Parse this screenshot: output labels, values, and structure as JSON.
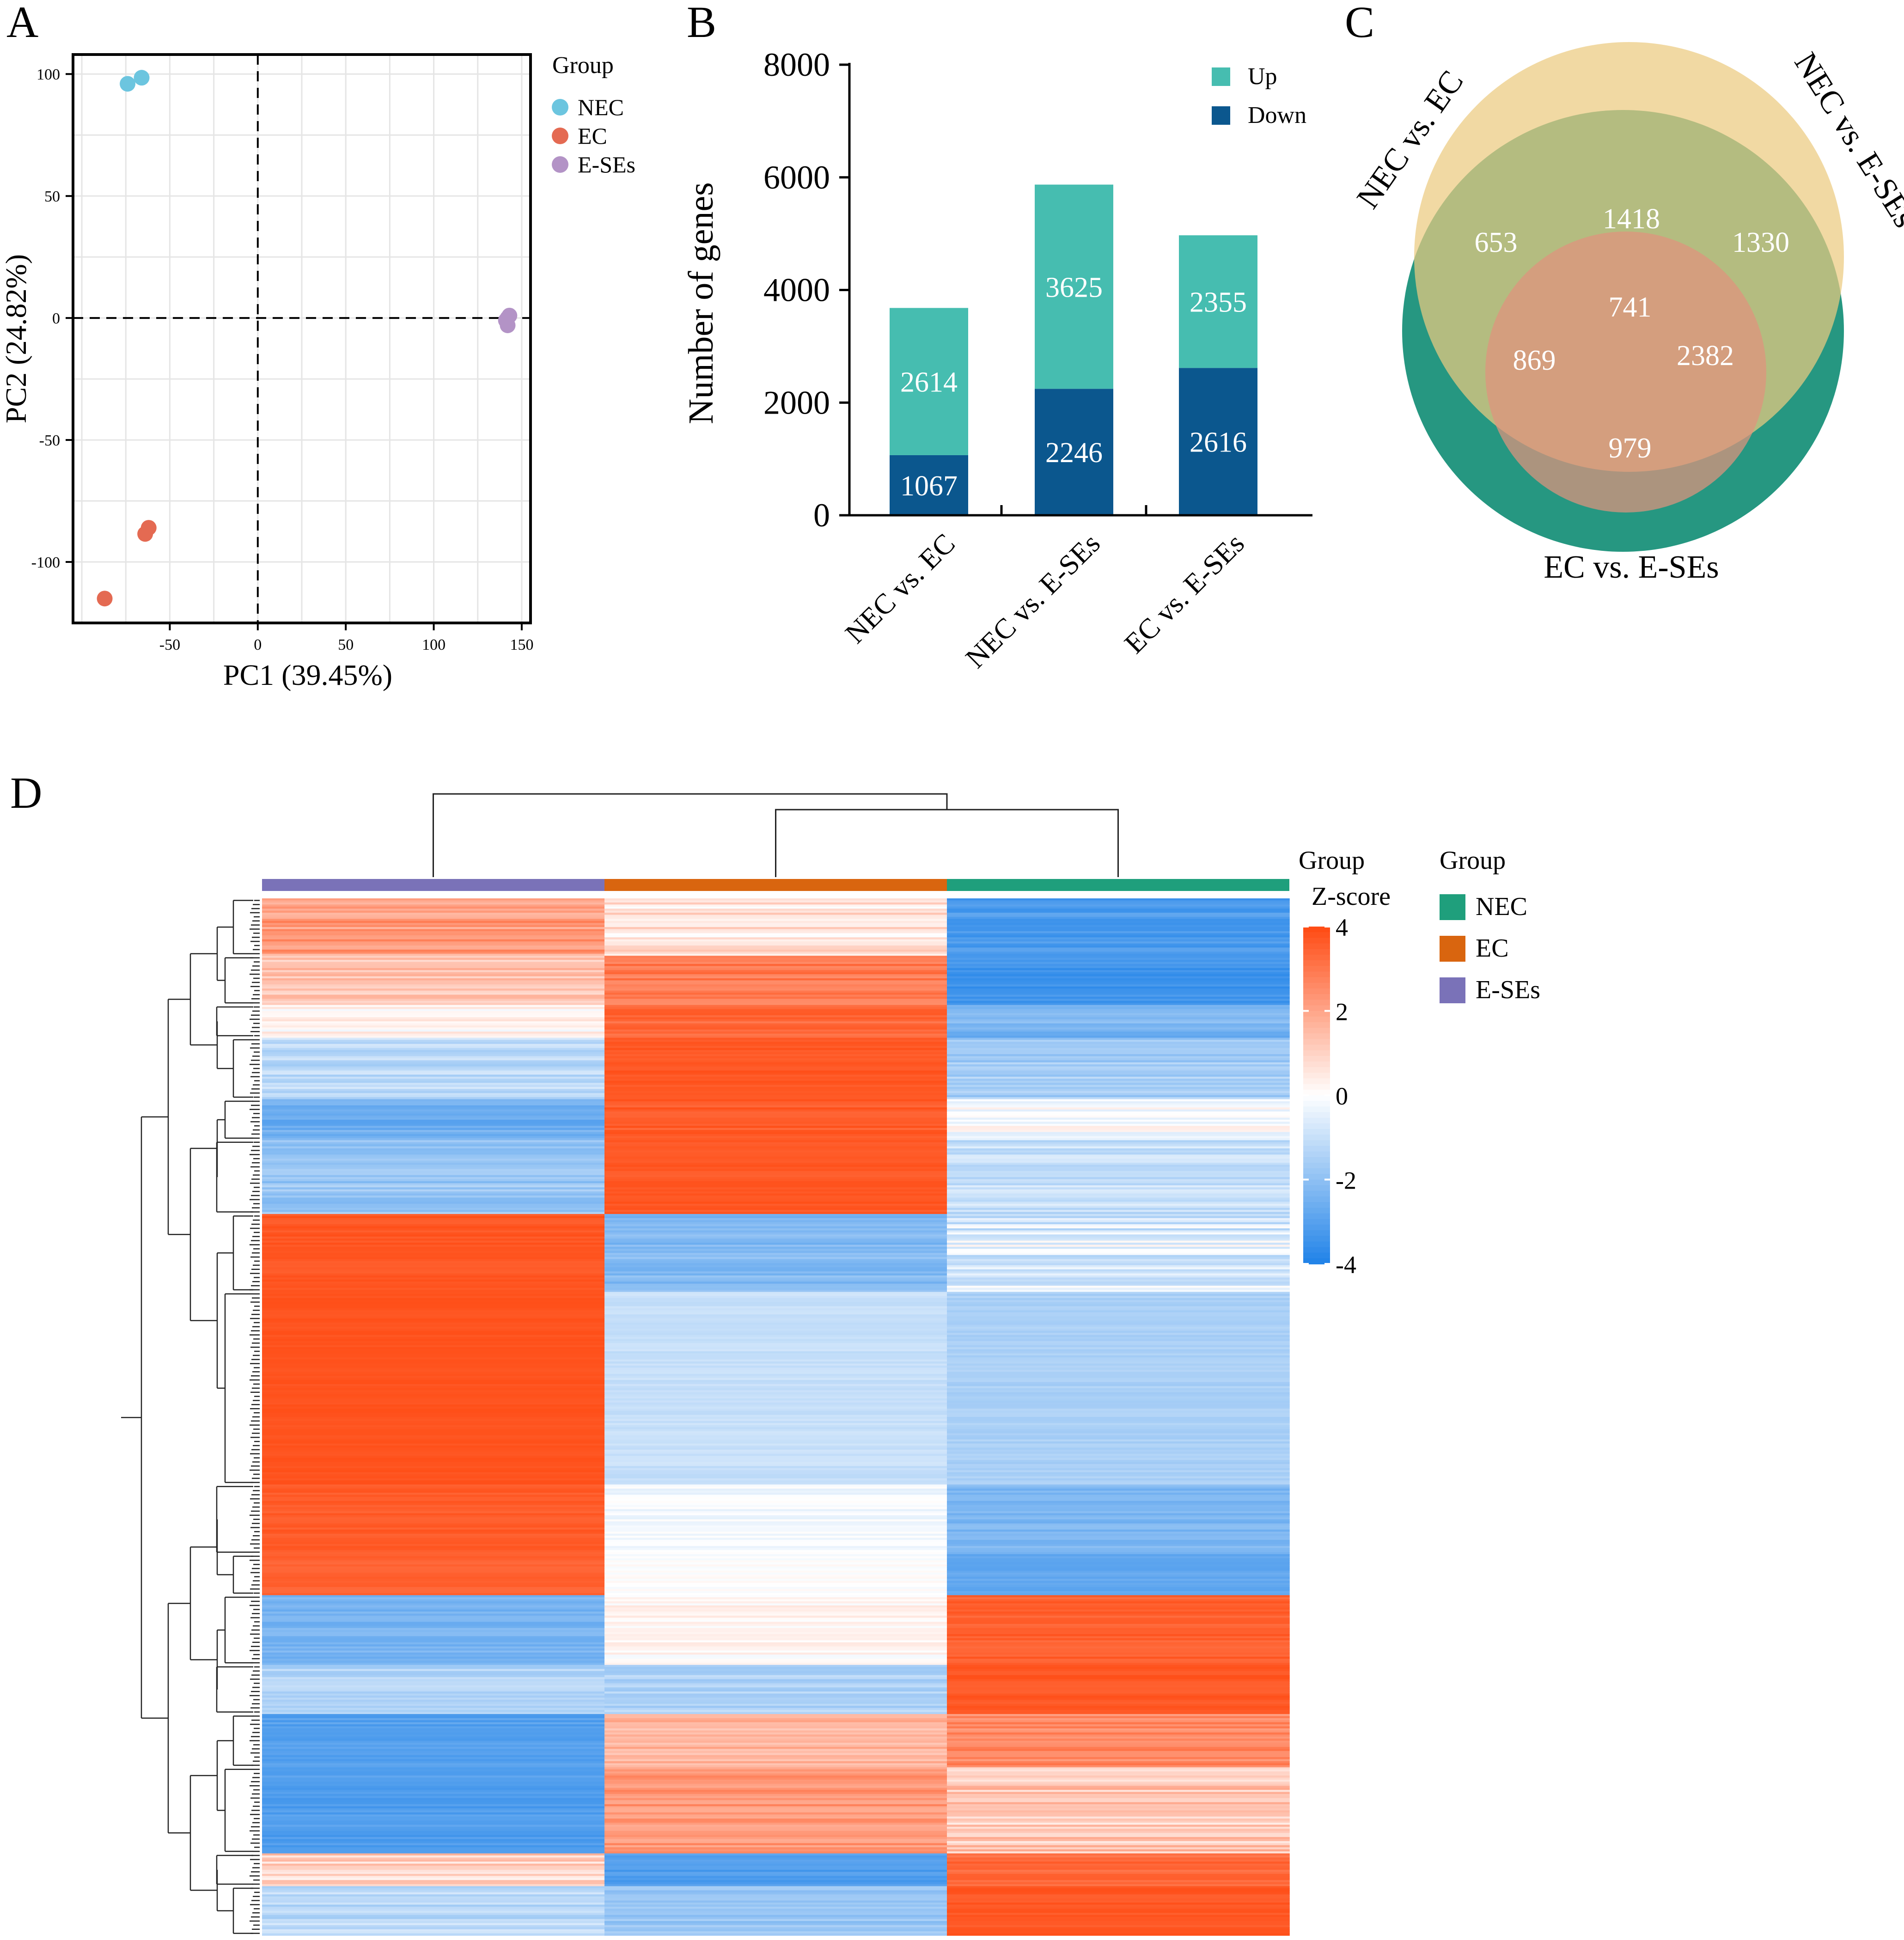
{
  "panels": {
    "a": "A",
    "b": "B",
    "c": "C",
    "d": "D"
  },
  "colors": {
    "nec": "#6CC5DF",
    "ec": "#E46A52",
    "eses": "#B393C6",
    "up": "#46BDB0",
    "down": "#0B578E",
    "nec_bar": "#1F9F7C",
    "ec_bar": "#D9650F",
    "eses_bar": "#7A72B8",
    "heat_high": "#FF4A12",
    "heat_mid": "#FFFFFF",
    "heat_low": "#1F82E8",
    "venn_a": "#1A917A",
    "venn_b": "#EBCB80",
    "venn_c": "#E0937D"
  },
  "chart_data": [
    {
      "id": "A",
      "type": "scatter",
      "xlabel": "PC1 (39.45%)",
      "ylabel": "PC2 (24.82%)",
      "xlim": [
        -105,
        155
      ],
      "ylim": [
        -125,
        108
      ],
      "xticks": [
        -50,
        0,
        50,
        100,
        150
      ],
      "yticks": [
        100,
        50,
        0,
        -50,
        -100
      ],
      "xtick_labels": [
        "-50",
        "0",
        "50",
        "100",
        "150"
      ],
      "ytick_labels": [
        "100",
        "50",
        "0",
        "-50",
        "-100"
      ],
      "legend_title": "Group",
      "series": [
        {
          "name": "NEC",
          "points": [
            [
              -74,
              96
            ],
            [
              -66,
              98.5
            ]
          ]
        },
        {
          "name": "EC",
          "points": [
            [
              -87,
              -115
            ],
            [
              -62,
              -86
            ],
            [
              -64,
              -88.5
            ]
          ]
        },
        {
          "name": "E-SEs",
          "points": [
            [
              142,
              0
            ],
            [
              141,
              -1
            ],
            [
              143,
              1
            ],
            [
              142,
              -3
            ]
          ]
        }
      ]
    },
    {
      "id": "B",
      "type": "bar",
      "stacked": true,
      "ylabel": "Number of genes",
      "ylim": [
        0,
        8000
      ],
      "yticks": [
        0,
        2000,
        4000,
        6000,
        8000
      ],
      "ytick_labels": [
        "0",
        "2000",
        "4000",
        "6000",
        "8000"
      ],
      "categories": [
        "NEC vs. EC",
        "NEC vs. E-SEs",
        "EC vs. E-SEs"
      ],
      "series": [
        {
          "name": "Down",
          "values": [
            1067,
            2246,
            2616
          ]
        },
        {
          "name": "Up",
          "values": [
            2614,
            3625,
            2355
          ]
        }
      ],
      "value_labels": {
        "Down": [
          "1067",
          "2246",
          "2616"
        ],
        "Up": [
          "2614",
          "3625",
          "2355"
        ]
      }
    },
    {
      "id": "C",
      "type": "venn",
      "sets": [
        "NEC vs. EC",
        "NEC vs. E-SEs",
        "EC vs. E-SEs"
      ],
      "regions": {
        "a_only": "653",
        "ab": "1418",
        "b_only": "1330",
        "abc": "741",
        "ac": "869",
        "bc": "2382",
        "c_only": "979"
      }
    },
    {
      "id": "D",
      "type": "heatmap",
      "group_title": "Group",
      "legend_title": "Group",
      "scale_title": "Z-score",
      "scale_ticks": [
        "4",
        "2",
        "0",
        "-2",
        "-4"
      ],
      "columns": [
        "E-SEs",
        "EC",
        "NEC"
      ],
      "legend_groups": [
        "NEC",
        "EC",
        "E-SEs"
      ],
      "clusters": [
        {
          "rows": 28,
          "values": [
            2.2,
            0.6,
            -3.2
          ],
          "jitter": [
            0.7,
            0.8,
            0.4
          ]
        },
        {
          "rows": 24,
          "values": [
            1.4,
            3.0,
            -3.4
          ],
          "jitter": [
            0.6,
            0.5,
            0.3
          ]
        },
        {
          "rows": 16,
          "values": [
            0.2,
            3.3,
            -2.4
          ],
          "jitter": [
            0.5,
            0.4,
            0.5
          ]
        },
        {
          "rows": 30,
          "values": [
            -1.2,
            3.7,
            -1.6
          ],
          "jitter": [
            0.5,
            0.2,
            0.5
          ]
        },
        {
          "rows": 20,
          "values": [
            -2.6,
            3.6,
            0.0
          ],
          "jitter": [
            0.4,
            0.3,
            0.6
          ]
        },
        {
          "rows": 36,
          "values": [
            -1.8,
            3.7,
            -1.0
          ],
          "jitter": [
            0.5,
            0.2,
            0.5
          ]
        },
        {
          "rows": 38,
          "values": [
            3.7,
            -2.2,
            -0.6
          ],
          "jitter": [
            0.2,
            0.4,
            0.9
          ]
        },
        {
          "rows": 94,
          "values": [
            3.8,
            -1.0,
            -1.5
          ],
          "jitter": [
            0.1,
            0.2,
            0.2
          ]
        },
        {
          "rows": 34,
          "values": [
            3.6,
            -0.2,
            -2.3
          ],
          "jitter": [
            0.2,
            0.3,
            0.3
          ]
        },
        {
          "rows": 20,
          "values": [
            3.5,
            0.0,
            -2.8
          ],
          "jitter": [
            0.2,
            0.2,
            0.2
          ]
        },
        {
          "rows": 34,
          "values": [
            -2.4,
            0.2,
            3.5
          ],
          "jitter": [
            0.3,
            0.4,
            0.3
          ]
        },
        {
          "rows": 24,
          "values": [
            -1.4,
            -1.4,
            3.7
          ],
          "jitter": [
            0.4,
            0.4,
            0.2
          ]
        },
        {
          "rows": 26,
          "values": [
            -3.0,
            1.6,
            2.6
          ],
          "jitter": [
            0.3,
            0.5,
            0.5
          ]
        },
        {
          "rows": 42,
          "values": [
            -3.1,
            2.3,
            1.2
          ],
          "jitter": [
            0.3,
            0.5,
            0.8
          ]
        },
        {
          "rows": 16,
          "values": [
            1.0,
            -3.1,
            3.3
          ],
          "jitter": [
            0.8,
            0.3,
            0.4
          ]
        },
        {
          "rows": 24,
          "values": [
            -1.2,
            -1.8,
            3.7
          ],
          "jitter": [
            0.5,
            0.4,
            0.2
          ]
        }
      ]
    }
  ]
}
